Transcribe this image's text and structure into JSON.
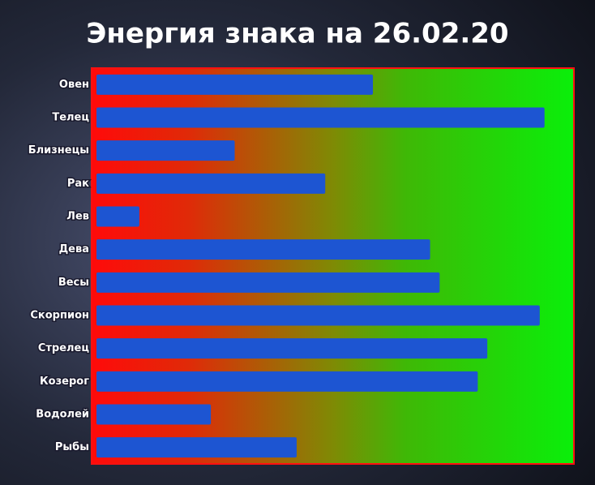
{
  "chart_data": {
    "type": "barh",
    "title": "Энергия знака на 26.02.20",
    "categories": [
      "Овен",
      "Телец",
      "Близнецы",
      "Рак",
      "Лев",
      "Дева",
      "Весы",
      "Скорпион",
      "Стрелец",
      "Козерог",
      "Водолей",
      "Рыбы"
    ],
    "values": [
      58,
      94,
      29,
      48,
      9,
      70,
      72,
      93,
      82,
      80,
      24,
      42
    ],
    "color": "#1d55d2",
    "xlim": [
      0,
      100
    ]
  }
}
